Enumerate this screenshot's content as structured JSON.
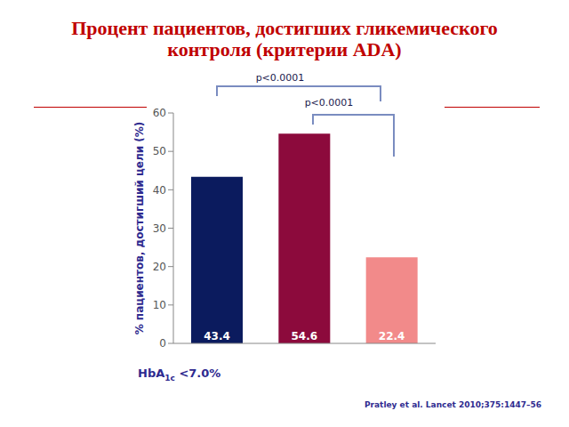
{
  "chart_data": {
    "type": "bar",
    "title": "Процент пациентов, достигших гликемического\nконтроля (критерии ADA)",
    "categories": [
      null,
      null,
      null
    ],
    "values": [
      43.4,
      54.6,
      22.4
    ],
    "colors": [
      "#0b1b5e",
      "#8c0a3c",
      "#f28a8a"
    ],
    "ylim": [
      0,
      60
    ],
    "yticks": [
      0,
      10,
      20,
      30,
      40,
      50,
      60
    ],
    "grid": false,
    "data_labels": true,
    "y_label": "% пациентов, достигший цели (%)",
    "x_label": "HbA1c <7.0%",
    "annotations": [
      "p<0.0001",
      "p<0.0001"
    ],
    "source": "Pratley et al. Lancet 2010;375:1447–56"
  }
}
